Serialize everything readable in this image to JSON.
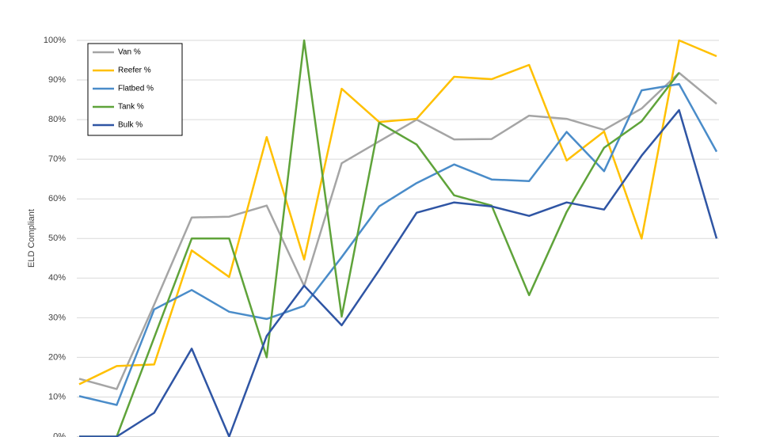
{
  "chart_data": {
    "type": "line",
    "y_label": "ELD Compliant",
    "categories": [
      null,
      null,
      null,
      null,
      null,
      null,
      null,
      null,
      null,
      null,
      null,
      null,
      null,
      null,
      null,
      null,
      null,
      null
    ],
    "series": [
      {
        "name": "Van %",
        "color": "#a5a5a5",
        "values": [
          14.6,
          12,
          33.3,
          55.3,
          55.5,
          58.3,
          38,
          69,
          74.5,
          80,
          75,
          75.1,
          81,
          80.2,
          77.4,
          82.8,
          91.8,
          84
        ]
      },
      {
        "name": "Reefer %",
        "color": "#ffc000",
        "values": [
          13.2,
          17.8,
          18.2,
          47,
          40.3,
          75.6,
          44.7,
          87.8,
          79.4,
          80.2,
          90.8,
          90.2,
          93.8,
          69.7,
          77,
          50,
          100,
          96
        ]
      },
      {
        "name": "Flatbed %",
        "color": "#4a8cc9",
        "values": [
          10.2,
          8,
          32.1,
          37,
          31.5,
          29.7,
          33,
          45.3,
          58.1,
          64,
          68.7,
          64.9,
          64.5,
          76.9,
          67,
          87.4,
          89,
          71.9
        ]
      },
      {
        "name": "Tank %",
        "color": "#5fa33a",
        "values": [
          0,
          0,
          25,
          50,
          50,
          20,
          100,
          30.3,
          79.2,
          73.7,
          60.9,
          58.3,
          35.7,
          56.7,
          72.9,
          79.6,
          91.8,
          null
        ]
      },
      {
        "name": "Bulk %",
        "color": "#2f55a4",
        "values": [
          0,
          0,
          6,
          22.2,
          0,
          25.4,
          38.1,
          28.1,
          42,
          56.5,
          59.1,
          58.1,
          55.7,
          59.1,
          57.3,
          70.9,
          82.4,
          50
        ]
      }
    ],
    "ylim": [
      0,
      100
    ],
    "yticks": [
      {
        "value": 0,
        "label": "0%"
      },
      {
        "value": 10,
        "label": "10%"
      },
      {
        "value": 20,
        "label": "20%"
      },
      {
        "value": 30,
        "label": "30%"
      },
      {
        "value": 40,
        "label": "40%"
      },
      {
        "value": 50,
        "label": "50%"
      },
      {
        "value": 60,
        "label": "60%"
      },
      {
        "value": 70,
        "label": "70%"
      },
      {
        "value": 80,
        "label": "80%"
      },
      {
        "value": 90,
        "label": "90%"
      },
      {
        "value": 100,
        "label": "100%"
      }
    ],
    "grid": true,
    "legend": "top-left"
  }
}
